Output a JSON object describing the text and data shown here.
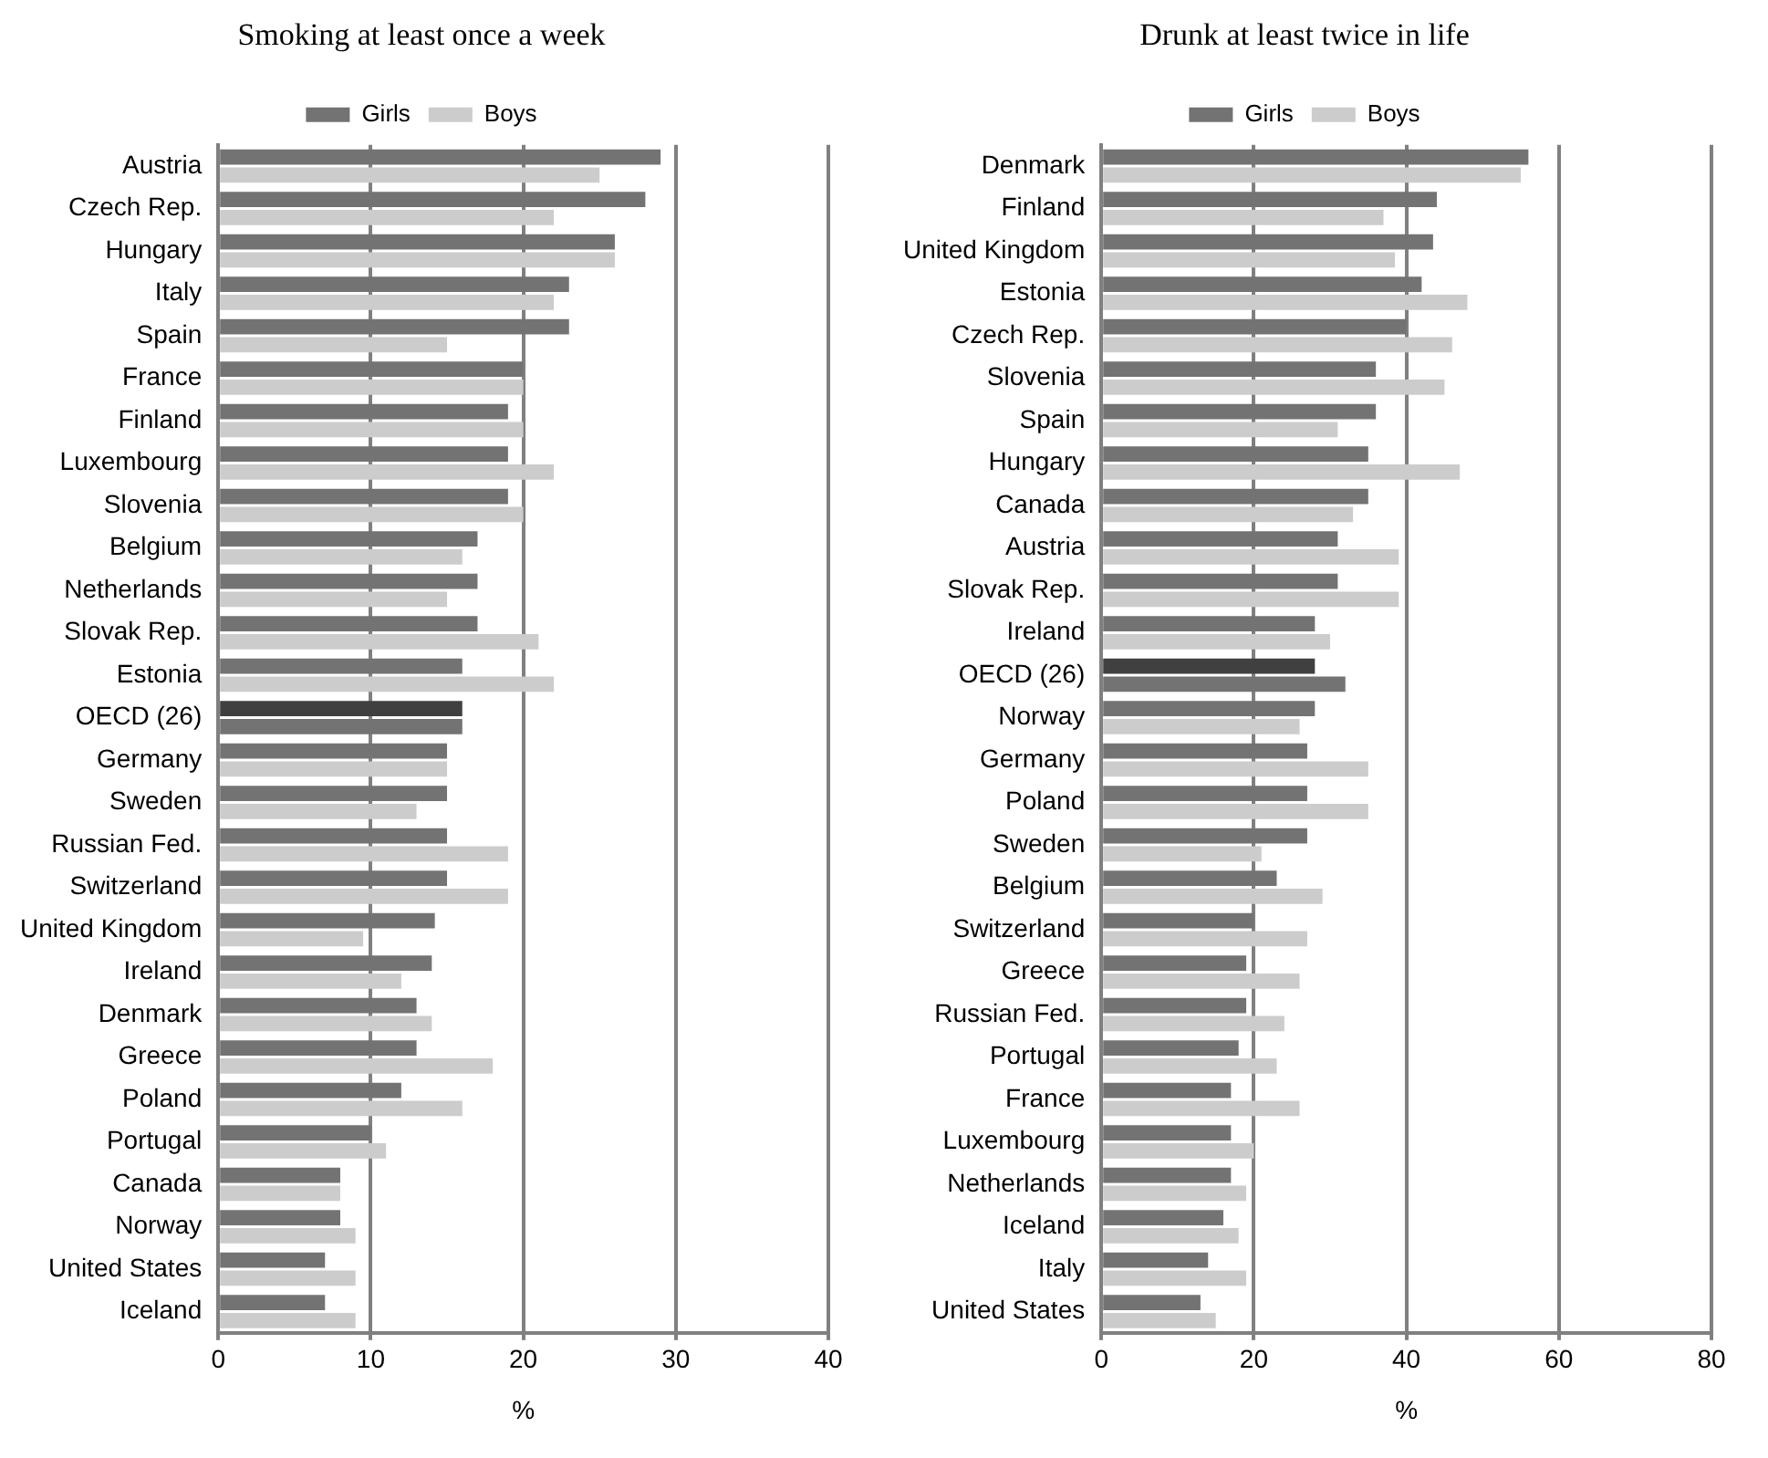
{
  "chart_data": [
    {
      "type": "bar",
      "orientation": "horizontal",
      "title": "Smoking at least once a week",
      "xlabel": "%",
      "legend": "top",
      "grid": "x",
      "xlim": [
        0,
        40
      ],
      "xticks": [
        0,
        10,
        20,
        30,
        40
      ],
      "categories": [
        "Austria",
        "Czech Rep.",
        "Hungary",
        "Italy",
        "Spain",
        "France",
        "Finland",
        "Luxembourg",
        "Slovenia",
        "Belgium",
        "Netherlands",
        "Slovak Rep.",
        "Estonia",
        "OECD (26)",
        "Germany",
        "Sweden",
        "Russian Fed.",
        "Switzerland",
        "United Kingdom",
        "Ireland",
        "Denmark",
        "Greece",
        "Poland",
        "Portugal",
        "Canada",
        "Norway",
        "United States",
        "Iceland"
      ],
      "series": [
        {
          "name": "Girls",
          "color": "#737373",
          "colors": [
            "#737373",
            "#737373",
            "#737373",
            "#737373",
            "#737373",
            "#737373",
            "#737373",
            "#737373",
            "#737373",
            "#737373",
            "#737373",
            "#737373",
            "#737373",
            "#404040",
            "#737373",
            "#737373",
            "#737373",
            "#737373",
            "#737373",
            "#737373",
            "#737373",
            "#737373",
            "#737373",
            "#737373",
            "#737373",
            "#737373",
            "#737373",
            "#737373"
          ],
          "values": [
            29,
            28,
            26,
            23,
            23,
            20,
            19,
            19,
            19,
            17,
            17,
            17,
            16,
            16,
            15,
            15,
            15,
            15,
            14.2,
            14,
            13,
            13,
            12,
            10,
            8,
            8,
            7,
            7
          ]
        },
        {
          "name": "Boys",
          "color": "#cccccc",
          "colors": [
            "#cccccc",
            "#cccccc",
            "#cccccc",
            "#cccccc",
            "#cccccc",
            "#cccccc",
            "#cccccc",
            "#cccccc",
            "#cccccc",
            "#cccccc",
            "#cccccc",
            "#cccccc",
            "#cccccc",
            "#737373",
            "#cccccc",
            "#cccccc",
            "#cccccc",
            "#cccccc",
            "#cccccc",
            "#cccccc",
            "#cccccc",
            "#cccccc",
            "#cccccc",
            "#cccccc",
            "#cccccc",
            "#cccccc",
            "#cccccc",
            "#cccccc"
          ],
          "values": [
            25,
            22,
            26,
            22,
            15,
            20,
            20,
            22,
            20,
            16,
            15,
            21,
            22,
            16,
            15,
            13,
            19,
            19,
            9.5,
            12,
            14,
            18,
            16,
            11,
            8,
            9,
            9,
            9
          ]
        }
      ]
    },
    {
      "type": "bar",
      "orientation": "horizontal",
      "title": "Drunk at least twice in life",
      "xlabel": "%",
      "legend": "top",
      "grid": "x",
      "xlim": [
        0,
        80
      ],
      "xticks": [
        0,
        20,
        40,
        60,
        80
      ],
      "categories": [
        "Denmark",
        "Finland",
        "United Kingdom",
        "Estonia",
        "Czech Rep.",
        "Slovenia",
        "Spain",
        "Hungary",
        "Canada",
        "Austria",
        "Slovak Rep.",
        "Ireland",
        "OECD (26)",
        "Norway",
        "Germany",
        "Poland",
        "Sweden",
        "Belgium",
        "Switzerland",
        "Greece",
        "Russian Fed.",
        "Portugal",
        "France",
        "Luxembourg",
        "Netherlands",
        "Iceland",
        "Italy",
        "United States"
      ],
      "series": [
        {
          "name": "Girls",
          "color": "#737373",
          "colors": [
            "#737373",
            "#737373",
            "#737373",
            "#737373",
            "#737373",
            "#737373",
            "#737373",
            "#737373",
            "#737373",
            "#737373",
            "#737373",
            "#737373",
            "#404040",
            "#737373",
            "#737373",
            "#737373",
            "#737373",
            "#737373",
            "#737373",
            "#737373",
            "#737373",
            "#737373",
            "#737373",
            "#737373",
            "#737373",
            "#737373",
            "#737373",
            "#737373"
          ],
          "values": [
            56,
            44,
            43.5,
            42,
            40,
            36,
            36,
            35,
            35,
            31,
            31,
            28,
            28,
            28,
            27,
            27,
            27,
            23,
            20,
            19,
            19,
            18,
            17,
            17,
            17,
            16,
            14,
            13
          ]
        },
        {
          "name": "Boys",
          "color": "#cccccc",
          "colors": [
            "#cccccc",
            "#cccccc",
            "#cccccc",
            "#cccccc",
            "#cccccc",
            "#cccccc",
            "#cccccc",
            "#cccccc",
            "#cccccc",
            "#cccccc",
            "#cccccc",
            "#cccccc",
            "#737373",
            "#cccccc",
            "#cccccc",
            "#cccccc",
            "#cccccc",
            "#cccccc",
            "#cccccc",
            "#cccccc",
            "#cccccc",
            "#cccccc",
            "#cccccc",
            "#cccccc",
            "#cccccc",
            "#cccccc",
            "#cccccc",
            "#cccccc"
          ],
          "values": [
            55,
            37,
            38.5,
            48,
            46,
            45,
            31,
            47,
            33,
            39,
            39,
            30,
            32,
            26,
            35,
            35,
            21,
            29,
            27,
            26,
            24,
            23,
            26,
            20,
            19,
            18,
            19,
            15
          ]
        }
      ]
    }
  ]
}
